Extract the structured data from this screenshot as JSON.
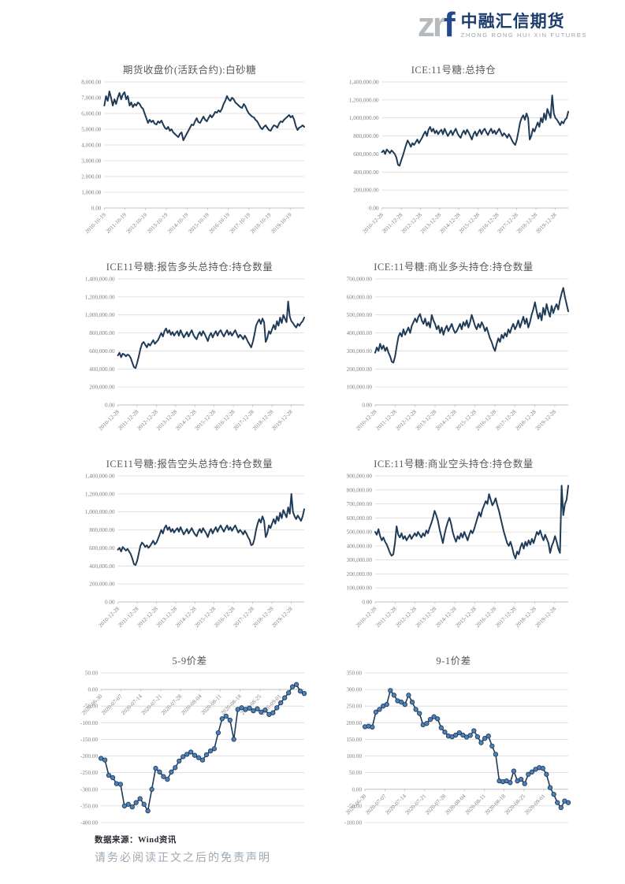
{
  "logo": {
    "zr": "zr",
    "f": "f",
    "name_cn": "中融汇信期货",
    "name_en": "ZHONG RONG HUI XIN FUTURES"
  },
  "footer": {
    "source": "数据来源：Wind资讯",
    "disclaimer": "请务必阅读正文之后的免责声明"
  },
  "colors": {
    "line": "#1f3b57",
    "marker_fill": "#4f81bd",
    "grid": "#d9d9d9",
    "axis": "#bfbfbf",
    "tick_label": "#7f7f7f",
    "title": "#595959",
    "brand_navy": "#1d3c6e",
    "brand_gray": "#b7babd"
  },
  "chart_data": [
    {
      "type": "line",
      "title": "期货收盘价(活跃合约):白砂糖",
      "ylim": [
        0,
        8000
      ],
      "ytick_step": 1000,
      "grid": true,
      "legend": "none",
      "markers": false,
      "labels_at_zero": false,
      "x_label_end_frac": 0.93,
      "x_labels": [
        "2010-10-19",
        "2011-10-19",
        "2012-10-19",
        "2013-10-19",
        "2014-10-19",
        "2015-10-19",
        "2016-10-19",
        "2017-10-19",
        "2018-10-19",
        "2019-10-19"
      ],
      "values": [
        6500,
        7100,
        6800,
        7400,
        7000,
        6500,
        6900,
        6600,
        7000,
        7300,
        6900,
        7200,
        7350,
        6900,
        7100,
        6500,
        6700,
        6400,
        6600,
        6500,
        6700,
        6600,
        6400,
        6300,
        6000,
        5700,
        5400,
        5600,
        5450,
        5550,
        5350,
        5300,
        5500,
        5400,
        5550,
        5300,
        5100,
        5000,
        5150,
        4900,
        5000,
        4800,
        4700,
        4600,
        4500,
        4700,
        4800,
        4300,
        4500,
        4700,
        4900,
        5100,
        5300,
        5250,
        5500,
        5700,
        5450,
        5400,
        5600,
        5800,
        5600,
        5500,
        5700,
        5900,
        5750,
        5900,
        6100,
        6050,
        6200,
        6100,
        6300,
        6600,
        6800,
        7100,
        6900,
        6800,
        7000,
        6900,
        6700,
        6600,
        6500,
        6400,
        6350,
        6600,
        6450,
        6200,
        6000,
        5900,
        5800,
        5750,
        5600,
        5500,
        5300,
        5100,
        5000,
        5150,
        5250,
        5100,
        4950,
        4900,
        5100,
        5250,
        5200,
        5100,
        5350,
        5500,
        5450,
        5600,
        5700,
        5800,
        5900,
        5750,
        5850,
        5600,
        5200,
        4950,
        5100,
        5150,
        5250,
        5150
      ]
    },
    {
      "type": "line",
      "title": "ICE:11号糖:总持仓",
      "ylim": [
        0,
        1400000
      ],
      "ytick_step": 200000,
      "grid": true,
      "legend": "none",
      "markers": false,
      "labels_at_zero": false,
      "x_label_end_frac": 0.93,
      "x_labels": [
        "2010-12-28",
        "2011-12-28",
        "2012-12-28",
        "2013-12-28",
        "2014-12-28",
        "2015-12-28",
        "2016-12-28",
        "2017-12-28",
        "2018-12-28",
        "2019-12-28"
      ],
      "values": [
        620000,
        640000,
        600000,
        650000,
        630000,
        610000,
        640000,
        620000,
        600000,
        560000,
        480000,
        470000,
        530000,
        580000,
        640000,
        700000,
        750000,
        720000,
        680000,
        720000,
        700000,
        730000,
        760000,
        720000,
        750000,
        780000,
        820000,
        850000,
        800000,
        870000,
        900000,
        850000,
        880000,
        830000,
        860000,
        820000,
        850000,
        870000,
        820000,
        880000,
        840000,
        800000,
        830000,
        860000,
        810000,
        850000,
        880000,
        830000,
        800000,
        780000,
        830000,
        860000,
        820000,
        870000,
        840000,
        800000,
        760000,
        820000,
        850000,
        800000,
        840000,
        870000,
        820000,
        860000,
        880000,
        840000,
        810000,
        850000,
        880000,
        830000,
        860000,
        820000,
        850000,
        880000,
        840000,
        800000,
        830000,
        810000,
        780000,
        820000,
        790000,
        750000,
        720000,
        700000,
        760000,
        850000,
        950000,
        1000000,
        1030000,
        980000,
        1050000,
        1000000,
        760000,
        800000,
        880000,
        850000,
        900000,
        950000,
        900000,
        1000000,
        950000,
        1050000,
        980000,
        1100000,
        1050000,
        1000000,
        1250000,
        1050000,
        1000000,
        980000,
        950000,
        920000,
        960000,
        940000,
        980000,
        1000000,
        1070000
      ]
    },
    {
      "type": "line",
      "title": "ICE11号糖:报告多头总持仓:持仓数量",
      "ylim": [
        0,
        1400000
      ],
      "ytick_step": 200000,
      "grid": true,
      "legend": "none",
      "markers": false,
      "labels_at_zero": false,
      "x_label_end_frac": 0.93,
      "x_labels": [
        "2010-12-28",
        "2011-12-28",
        "2012-12-28",
        "2013-12-28",
        "2014-12-28",
        "2015-12-28",
        "2016-12-28",
        "2017-12-28",
        "2018-12-28",
        "2019-12-28"
      ],
      "values": [
        550000,
        580000,
        530000,
        570000,
        560000,
        540000,
        560000,
        550000,
        520000,
        470000,
        420000,
        410000,
        470000,
        540000,
        620000,
        680000,
        700000,
        670000,
        640000,
        680000,
        660000,
        690000,
        720000,
        680000,
        700000,
        720000,
        760000,
        800000,
        760000,
        820000,
        850000,
        800000,
        830000,
        780000,
        810000,
        770000,
        800000,
        820000,
        770000,
        830000,
        790000,
        750000,
        780000,
        810000,
        760000,
        800000,
        830000,
        780000,
        750000,
        730000,
        780000,
        810000,
        770000,
        820000,
        790000,
        750000,
        710000,
        770000,
        800000,
        750000,
        790000,
        820000,
        770000,
        810000,
        830000,
        790000,
        760000,
        800000,
        830000,
        780000,
        810000,
        770000,
        800000,
        830000,
        790000,
        750000,
        780000,
        760000,
        730000,
        770000,
        740000,
        700000,
        670000,
        640000,
        700000,
        780000,
        880000,
        920000,
        950000,
        900000,
        960000,
        920000,
        700000,
        740000,
        820000,
        790000,
        840000,
        890000,
        840000,
        930000,
        880000,
        970000,
        910000,
        1000000,
        960000,
        920000,
        1150000,
        980000,
        930000,
        910000,
        880000,
        860000,
        900000,
        880000,
        910000,
        930000,
        970000
      ]
    },
    {
      "type": "line",
      "title": "ICE:11号糖:商业多头持仓:持仓数量",
      "ylim": [
        0,
        700000
      ],
      "ytick_step": 100000,
      "grid": true,
      "legend": "none",
      "markers": false,
      "labels_at_zero": false,
      "x_label_end_frac": 0.93,
      "x_labels": [
        "2010-12-28",
        "2011-12-28",
        "2012-12-28",
        "2013-12-28",
        "2014-12-28",
        "2015-12-28",
        "2016-12-28",
        "2017-12-28",
        "2018-12-28",
        "2019-12-28"
      ],
      "values": [
        290000,
        320000,
        300000,
        340000,
        310000,
        330000,
        300000,
        320000,
        290000,
        270000,
        240000,
        235000,
        270000,
        330000,
        380000,
        400000,
        380000,
        420000,
        390000,
        410000,
        430000,
        400000,
        440000,
        460000,
        480000,
        460000,
        490000,
        505000,
        470000,
        450000,
        480000,
        440000,
        460000,
        430000,
        500000,
        470000,
        450000,
        420000,
        440000,
        400000,
        430000,
        390000,
        420000,
        440000,
        410000,
        430000,
        450000,
        420000,
        400000,
        410000,
        430000,
        450000,
        420000,
        460000,
        440000,
        470000,
        430000,
        460000,
        500000,
        470000,
        440000,
        420000,
        450000,
        430000,
        460000,
        440000,
        410000,
        430000,
        400000,
        370000,
        350000,
        320000,
        300000,
        340000,
        370000,
        350000,
        390000,
        370000,
        400000,
        380000,
        420000,
        400000,
        430000,
        450000,
        420000,
        440000,
        470000,
        430000,
        460000,
        490000,
        450000,
        480000,
        430000,
        460000,
        500000,
        530000,
        570000,
        520000,
        480000,
        510000,
        470000,
        540000,
        500000,
        560000,
        520000,
        490000,
        550000,
        510000,
        540000,
        560000,
        530000,
        580000,
        620000,
        650000,
        600000,
        560000,
        520000
      ]
    },
    {
      "type": "line",
      "title": "ICE11号糖:报告空头总持仓:持仓数量",
      "ylim": [
        0,
        1400000
      ],
      "ytick_step": 200000,
      "grid": true,
      "legend": "none",
      "markers": false,
      "labels_at_zero": false,
      "x_label_end_frac": 0.93,
      "x_labels": [
        "2010-12-28",
        "2011-12-28",
        "2012-12-28",
        "2013-12-28",
        "2014-12-28",
        "2015-12-28",
        "2016-12-28",
        "2017-12-28",
        "2018-12-28",
        "2019-12-28"
      ],
      "values": [
        580000,
        600000,
        560000,
        610000,
        590000,
        570000,
        590000,
        560000,
        530000,
        480000,
        420000,
        410000,
        460000,
        540000,
        620000,
        660000,
        640000,
        610000,
        630000,
        600000,
        620000,
        650000,
        680000,
        640000,
        660000,
        700000,
        750000,
        800000,
        760000,
        820000,
        850000,
        800000,
        830000,
        780000,
        810000,
        770000,
        800000,
        820000,
        780000,
        830000,
        790000,
        750000,
        780000,
        810000,
        760000,
        790000,
        820000,
        780000,
        750000,
        730000,
        780000,
        810000,
        770000,
        820000,
        790000,
        760000,
        720000,
        780000,
        810000,
        760000,
        800000,
        830000,
        780000,
        820000,
        850000,
        810000,
        780000,
        820000,
        850000,
        800000,
        830000,
        790000,
        820000,
        850000,
        810000,
        770000,
        800000,
        780000,
        750000,
        790000,
        760000,
        720000,
        690000,
        630000,
        640000,
        700000,
        800000,
        870000,
        920000,
        880000,
        950000,
        900000,
        720000,
        760000,
        850000,
        820000,
        870000,
        920000,
        870000,
        950000,
        900000,
        990000,
        930000,
        1020000,
        980000,
        940000,
        1050000,
        980000,
        1200000,
        1000000,
        950000,
        920000,
        960000,
        930000,
        900000,
        950000,
        1030000
      ]
    },
    {
      "type": "line",
      "title": "ICE:11号糖:商业空头持仓:持仓数量",
      "ylim": [
        0,
        900000
      ],
      "ytick_step": 100000,
      "grid": true,
      "legend": "none",
      "markers": false,
      "labels_at_zero": false,
      "x_label_end_frac": 0.93,
      "x_labels": [
        "2010-12-28",
        "2011-12-28",
        "2012-12-28",
        "2013-12-28",
        "2014-12-28",
        "2015-12-28",
        "2016-12-28",
        "2017-12-28",
        "2018-12-28",
        "2019-12-28"
      ],
      "values": [
        500000,
        480000,
        520000,
        470000,
        440000,
        460000,
        430000,
        410000,
        380000,
        350000,
        330000,
        340000,
        420000,
        540000,
        480000,
        460000,
        490000,
        450000,
        470000,
        440000,
        460000,
        480000,
        450000,
        470000,
        490000,
        470000,
        500000,
        480000,
        460000,
        490000,
        470000,
        510000,
        490000,
        530000,
        560000,
        600000,
        650000,
        620000,
        580000,
        520000,
        470000,
        420000,
        480000,
        530000,
        570000,
        600000,
        560000,
        500000,
        460000,
        430000,
        470000,
        450000,
        490000,
        460000,
        500000,
        470000,
        440000,
        480000,
        510000,
        490000,
        520000,
        560000,
        600000,
        640000,
        610000,
        660000,
        690000,
        720000,
        700000,
        770000,
        730000,
        690000,
        710000,
        740000,
        690000,
        650000,
        600000,
        550000,
        500000,
        460000,
        420000,
        400000,
        430000,
        390000,
        340000,
        310000,
        360000,
        340000,
        390000,
        420000,
        380000,
        430000,
        400000,
        440000,
        410000,
        450000,
        420000,
        460000,
        500000,
        480000,
        510000,
        470000,
        440000,
        480000,
        450000,
        420000,
        350000,
        400000,
        430000,
        470000,
        430000,
        380000,
        350000,
        830000,
        620000,
        700000,
        730000,
        830000
      ]
    },
    {
      "type": "line",
      "title": "5-9价差",
      "ylim": [
        -400,
        50
      ],
      "ytick_step": 50,
      "grid": true,
      "legend": "none",
      "markers": true,
      "labels_at_zero": true,
      "x_label_end_frac": 0.88,
      "x_labels": [
        "2020-06-30",
        "2020-07-07",
        "2020-07-14",
        "2020-07-21",
        "2020-07-28",
        "2020-08-04",
        "2020-08-11",
        "2020-08-18",
        "2020-08-25",
        "2020-09-01"
      ],
      "values": [
        -207,
        -212,
        -258,
        -265,
        -283,
        -285,
        -350,
        -345,
        -353,
        -340,
        -328,
        -345,
        -365,
        -300,
        -237,
        -248,
        -262,
        -270,
        -248,
        -235,
        -215,
        -202,
        -195,
        -188,
        -198,
        -205,
        -212,
        -196,
        -185,
        -178,
        -130,
        -88,
        -80,
        -92,
        -150,
        -60,
        -55,
        -60,
        -56,
        -64,
        -58,
        -68,
        -62,
        -75,
        -70,
        -55,
        -40,
        -25,
        -10,
        8,
        15,
        -5,
        -12
      ]
    },
    {
      "type": "line",
      "title": "9-1价差",
      "ylim": [
        -100,
        350
      ],
      "ytick_step": 50,
      "grid": true,
      "legend": "none",
      "markers": true,
      "labels_at_zero": true,
      "x_label_end_frac": 0.88,
      "x_labels": [
        "2020-06-30",
        "2020-07-07",
        "2020-07-14",
        "2020-07-21",
        "2020-07-28",
        "2020-08-04",
        "2020-08-11",
        "2020-08-18",
        "2020-08-25",
        "2020-09-01"
      ],
      "values": [
        188,
        190,
        187,
        232,
        240,
        250,
        255,
        297,
        283,
        266,
        262,
        255,
        283,
        262,
        240,
        228,
        194,
        198,
        210,
        218,
        212,
        185,
        172,
        160,
        158,
        163,
        170,
        163,
        157,
        162,
        176,
        158,
        140,
        153,
        160,
        130,
        105,
        25,
        23,
        25,
        20,
        55,
        25,
        30,
        17,
        45,
        52,
        60,
        65,
        63,
        45,
        5,
        -15,
        -40,
        -55,
        -35,
        -40
      ]
    }
  ]
}
